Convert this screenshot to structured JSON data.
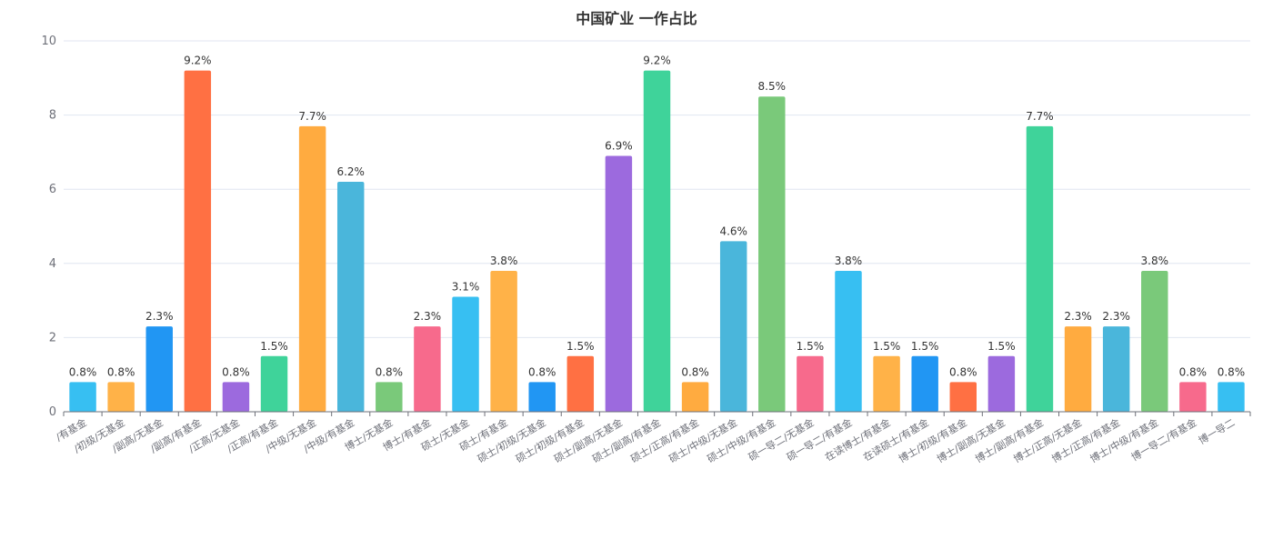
{
  "chart_data": {
    "type": "bar",
    "title": "中国矿业 一作占比",
    "xlabel": "",
    "ylabel": "",
    "ylim": [
      0,
      10
    ],
    "yticks": [
      0,
      2,
      4,
      6,
      8,
      10
    ],
    "grid": true,
    "categories": [
      "/有基金",
      "/初级/无基金",
      "/副高/无基金",
      "/副高/有基金",
      "/正高/无基金",
      "/正高/有基金",
      "/中级/无基金",
      "/中级/有基金",
      "博士/无基金",
      "博士/有基金",
      "硕士/无基金",
      "硕士/有基金",
      "硕士/初级/无基金",
      "硕士/初级/有基金",
      "硕士/副高/无基金",
      "硕士/副高/有基金",
      "硕士/正高/有基金",
      "硕士/中级/无基金",
      "硕士/中级/有基金",
      "硕一导二/无基金",
      "硕一导二/有基金",
      "在读博士/有基金",
      "在读硕士/有基金",
      "博士/初级/有基金",
      "博士/副高/无基金",
      "博士/副高/有基金",
      "博士/正高/无基金",
      "博士/正高/有基金",
      "博士/中级/有基金",
      "博一导二/有基金",
      "博一导二"
    ],
    "values": [
      0.8,
      0.8,
      2.3,
      9.2,
      0.8,
      1.5,
      7.7,
      6.2,
      0.8,
      2.3,
      3.1,
      3.8,
      0.8,
      1.5,
      6.9,
      9.2,
      0.8,
      4.6,
      8.5,
      1.5,
      3.8,
      1.5,
      1.5,
      0.8,
      1.5,
      7.7,
      2.3,
      2.3,
      3.8,
      0.8,
      0.8
    ],
    "labels": [
      "0.8%",
      "0.8%",
      "2.3%",
      "9.2%",
      "0.8%",
      "1.5%",
      "7.7%",
      "6.2%",
      "0.8%",
      "2.3%",
      "3.1%",
      "3.8%",
      "0.8%",
      "1.5%",
      "6.9%",
      "9.2%",
      "0.8%",
      "4.6%",
      "8.5%",
      "1.5%",
      "3.8%",
      "1.5%",
      "1.5%",
      "0.8%",
      "1.5%",
      "7.7%",
      "2.3%",
      "2.3%",
      "3.8%",
      "0.8%",
      "0.8%"
    ],
    "colors": [
      "#37bff2",
      "#ffb248",
      "#2196f3",
      "#ff7043",
      "#9c6ade",
      "#3fd39a",
      "#ffab40",
      "#4ab6db",
      "#7ac97a",
      "#f76a8c"
    ]
  }
}
